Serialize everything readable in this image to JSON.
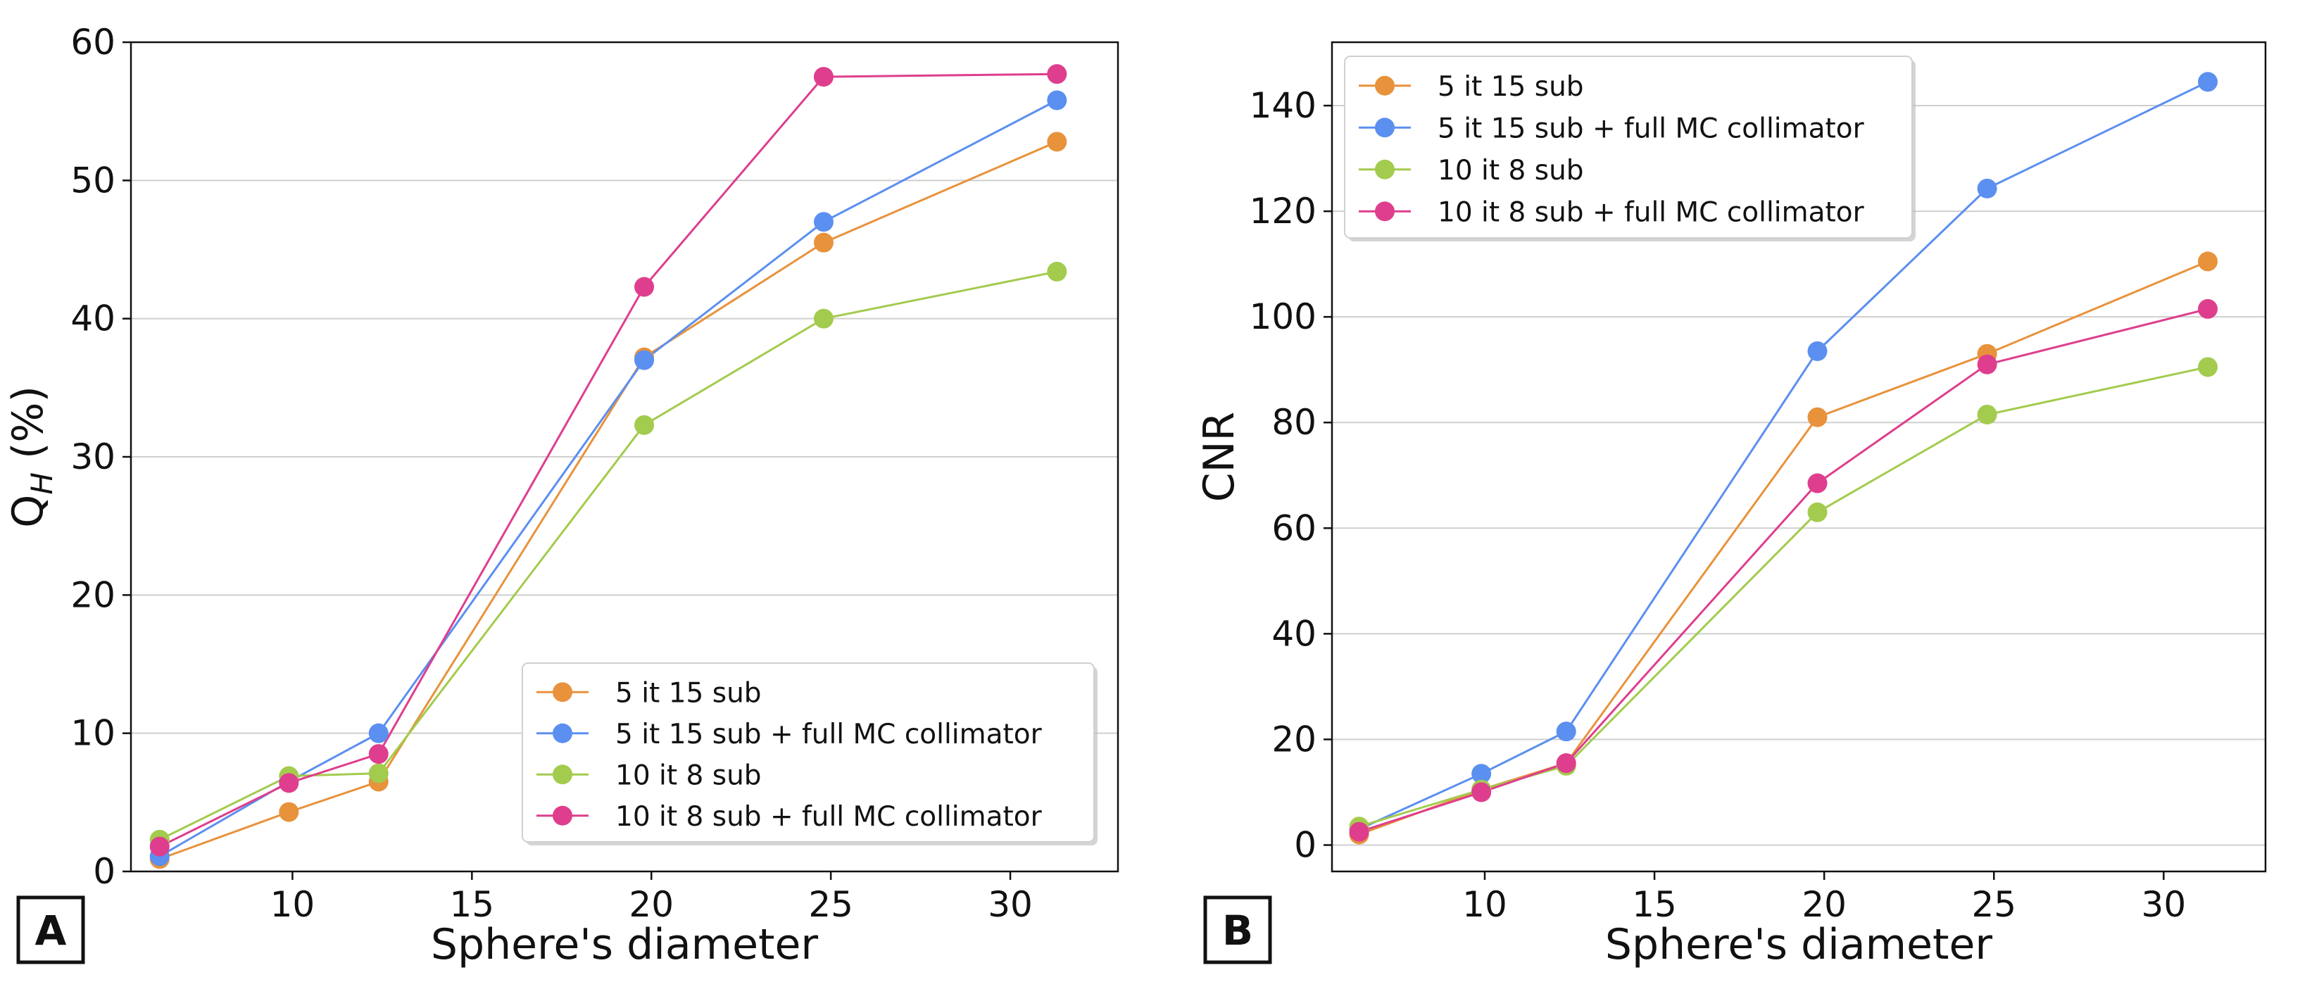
{
  "chart_data": [
    {
      "type": "line",
      "panel_label": "A",
      "title": "",
      "xlabel": "Sphere's diameter",
      "ylabel": "Q",
      "ylabel_sub": "H",
      "ylabel_suffix": " (%)",
      "xlim": [
        5.5,
        33
      ],
      "ylim": [
        0,
        60
      ],
      "xticks": [
        10,
        15,
        20,
        25,
        30
      ],
      "yticks": [
        0,
        10,
        20,
        30,
        40,
        50,
        60
      ],
      "grid": "horizontal",
      "legend_position": "lower-right",
      "x": [
        6.3,
        9.9,
        12.4,
        19.8,
        24.8,
        31.3
      ],
      "series": [
        {
          "name": "5 it 15 sub",
          "color": "#E8923C",
          "values": [
            0.9,
            4.3,
            6.5,
            37.2,
            45.5,
            52.8
          ]
        },
        {
          "name": "5 it 15 sub + full MC collimator",
          "color": "#5B8FF0",
          "values": [
            1.1,
            6.5,
            10.0,
            37.0,
            47.0,
            55.8
          ]
        },
        {
          "name": "10 it 8 sub",
          "color": "#A3CB4E",
          "values": [
            2.3,
            6.9,
            7.1,
            32.3,
            40.0,
            43.4
          ]
        },
        {
          "name": "10 it 8 sub + full MC collimator",
          "color": "#DE3E8D",
          "values": [
            1.8,
            6.4,
            8.5,
            42.3,
            57.5,
            57.7
          ]
        }
      ]
    },
    {
      "type": "line",
      "panel_label": "B",
      "title": "",
      "xlabel": "Sphere's diameter",
      "ylabel": "CNR",
      "ylabel_sub": "",
      "ylabel_suffix": "",
      "xlim": [
        5.5,
        33
      ],
      "ylim": [
        -5,
        152
      ],
      "xticks": [
        10,
        15,
        20,
        25,
        30
      ],
      "yticks": [
        0,
        20,
        40,
        60,
        80,
        100,
        120,
        140
      ],
      "grid": "horizontal",
      "legend_position": "upper-left",
      "x": [
        6.3,
        9.9,
        12.4,
        19.8,
        24.8,
        31.3
      ],
      "series": [
        {
          "name": "5 it 15 sub",
          "color": "#E8923C",
          "values": [
            2.0,
            10.5,
            15.5,
            81.0,
            93.0,
            110.5
          ]
        },
        {
          "name": "5 it 15 sub + full MC collimator",
          "color": "#5B8FF0",
          "values": [
            3.0,
            13.5,
            21.5,
            93.5,
            124.3,
            144.5
          ]
        },
        {
          "name": "10 it 8 sub",
          "color": "#A3CB4E",
          "values": [
            3.5,
            10.5,
            15.0,
            63.0,
            81.5,
            90.5
          ]
        },
        {
          "name": "10 it 8 sub + full MC collimator",
          "color": "#DE3E8D",
          "values": [
            2.5,
            10.0,
            15.5,
            68.5,
            91.0,
            101.5
          ]
        }
      ]
    }
  ]
}
